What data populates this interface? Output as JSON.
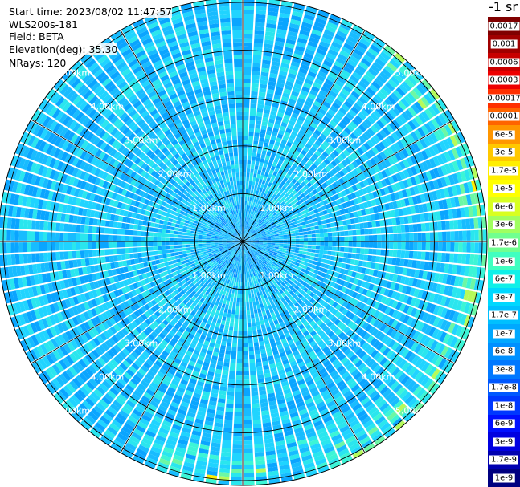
{
  "info": {
    "start_time": "Start time: 2023/08/02 11:47:57",
    "instrument": "WLS200s-181",
    "field": "Field: BETA",
    "elevation": "Elevation(deg): 35.30",
    "nrays": "NRays: 120"
  },
  "units_label": "-1 sr",
  "range_rings": [
    {
      "label": "1.00km",
      "km": 1
    },
    {
      "label": "2.00km",
      "km": 2
    },
    {
      "label": "3.00km",
      "km": 3
    },
    {
      "label": "4.00km",
      "km": 4
    },
    {
      "label": "5.00km",
      "km": 5
    }
  ],
  "plot": {
    "max_range_km": 5.1,
    "spoke_count": 12,
    "rays": 120,
    "gates": 60
  },
  "colorbar": [
    {
      "label": "0.0017",
      "color": "#800000"
    },
    {
      "label": "0.001",
      "color": "#a00000"
    },
    {
      "label": "0.0006",
      "color": "#c80000"
    },
    {
      "label": "0.0003",
      "color": "#ee0000"
    },
    {
      "label": "0.00017",
      "color": "#ff3000"
    },
    {
      "label": "0.0001",
      "color": "#ff6400"
    },
    {
      "label": "6e-5",
      "color": "#ff9600"
    },
    {
      "label": "3e-5",
      "color": "#ffc800"
    },
    {
      "label": "1.7e-5",
      "color": "#ffee00"
    },
    {
      "label": "1e-5",
      "color": "#ffff00"
    },
    {
      "label": "6e-6",
      "color": "#d8ff20"
    },
    {
      "label": "3e-6",
      "color": "#a0ff60"
    },
    {
      "label": "1.7e-6",
      "color": "#70ff90"
    },
    {
      "label": "1e-6",
      "color": "#40ffc0"
    },
    {
      "label": "6e-7",
      "color": "#10f0e8"
    },
    {
      "label": "3e-7",
      "color": "#00d8ff"
    },
    {
      "label": "1.7e-7",
      "color": "#00c0ff"
    },
    {
      "label": "1e-7",
      "color": "#00a8ff"
    },
    {
      "label": "6e-8",
      "color": "#0090ff"
    },
    {
      "label": "3e-8",
      "color": "#0078ff"
    },
    {
      "label": "1.7e-8",
      "color": "#0058ff"
    },
    {
      "label": "1e-8",
      "color": "#0038ff"
    },
    {
      "label": "6e-9",
      "color": "#0010ff"
    },
    {
      "label": "3e-9",
      "color": "#0000e0"
    },
    {
      "label": "1.7e-9",
      "color": "#0000b0"
    },
    {
      "label": "1e-9",
      "color": "#000080"
    }
  ]
}
